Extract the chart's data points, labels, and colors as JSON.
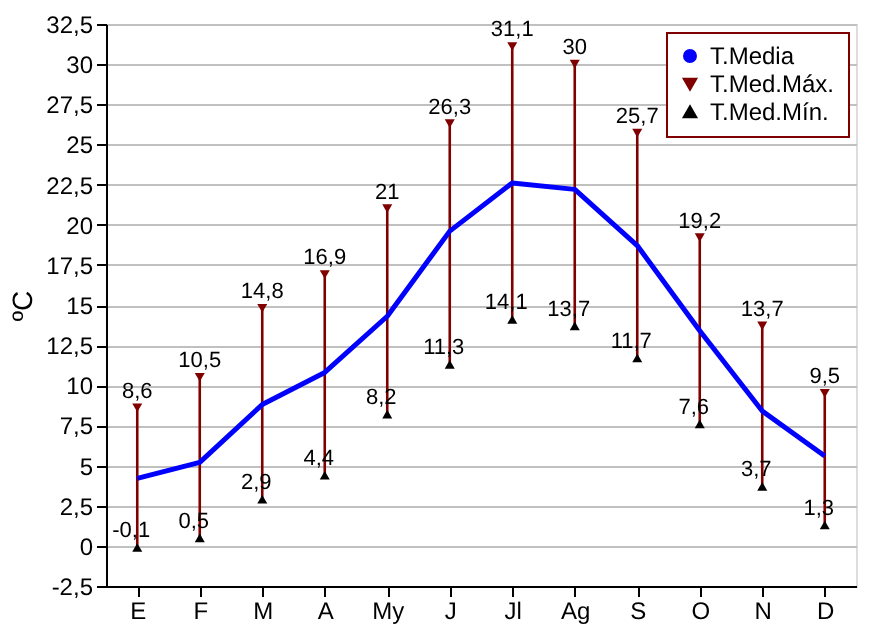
{
  "chart_data": {
    "type": "line",
    "ylabel": "ºC",
    "categories": [
      "E",
      "F",
      "M",
      "A",
      "My",
      "J",
      "Jl",
      "Ag",
      "S",
      "O",
      "N",
      "D"
    ],
    "series": [
      {
        "name": "T.Media",
        "color": "#0000ff",
        "marker": "none",
        "values": [
          4.2,
          5.2,
          8.8,
          10.8,
          14.3,
          19.6,
          22.6,
          22.2,
          18.7,
          13.4,
          8.4,
          5.6
        ]
      },
      {
        "name": "T.Med.Máx.",
        "type": "scatter",
        "color": "#800000",
        "marker": "triangle-down",
        "values": [
          8.6,
          10.5,
          14.8,
          16.9,
          21,
          26.3,
          31.1,
          30,
          25.7,
          19.2,
          13.7,
          9.5
        ],
        "value_labels": [
          "8,6",
          "10,5",
          "14,8",
          "16,9",
          "21",
          "26,3",
          "31,1",
          "30",
          "25,7",
          "19,2",
          "13,7",
          "9,5"
        ]
      },
      {
        "type": "bar",
        "color": "#800000",
        "base": [
          -0.1,
          0.5,
          2.9,
          4.4,
          8.2,
          11.3,
          14.1,
          13.7,
          11.7,
          7.6,
          3.7,
          1.3
        ],
        "values": [
          8.7,
          10.0,
          11.9,
          12.5,
          12.8,
          15.0,
          17.0,
          16.3,
          14.0,
          11.6,
          10.0,
          8.2
        ]
      },
      {
        "name": "T.Med.Mín.",
        "type": "scatter",
        "color": "#000000",
        "marker": "triangle-up",
        "values": [
          -0.1,
          0.5,
          2.9,
          4.4,
          8.2,
          11.3,
          14.1,
          13.7,
          11.7,
          7.6,
          3.7,
          1.3
        ],
        "value_labels": [
          "-0,1",
          "0,5",
          "2,9",
          "4,4",
          "8,2",
          "11,3",
          "14,1",
          "13,7",
          "11,7",
          "7,6",
          "3,7",
          "1,3"
        ]
      }
    ],
    "ylim": [
      -2.5,
      32.5
    ],
    "yticks": [
      {
        "value": -2.5,
        "label": "-2,5"
      },
      0,
      {
        "value": 2.5,
        "label": "2,5"
      },
      5,
      {
        "value": 7.5,
        "label": "7,5"
      },
      10,
      {
        "value": 12.5,
        "label": "12,5"
      },
      15,
      {
        "value": 17.5,
        "label": "17,5"
      },
      20,
      {
        "value": 22.5,
        "label": "22,5"
      },
      25,
      {
        "value": 27.5,
        "label": "27,5"
      },
      30,
      {
        "value": 32.5,
        "label": "32,5"
      }
    ],
    "grid": "y",
    "legend": "top right"
  }
}
